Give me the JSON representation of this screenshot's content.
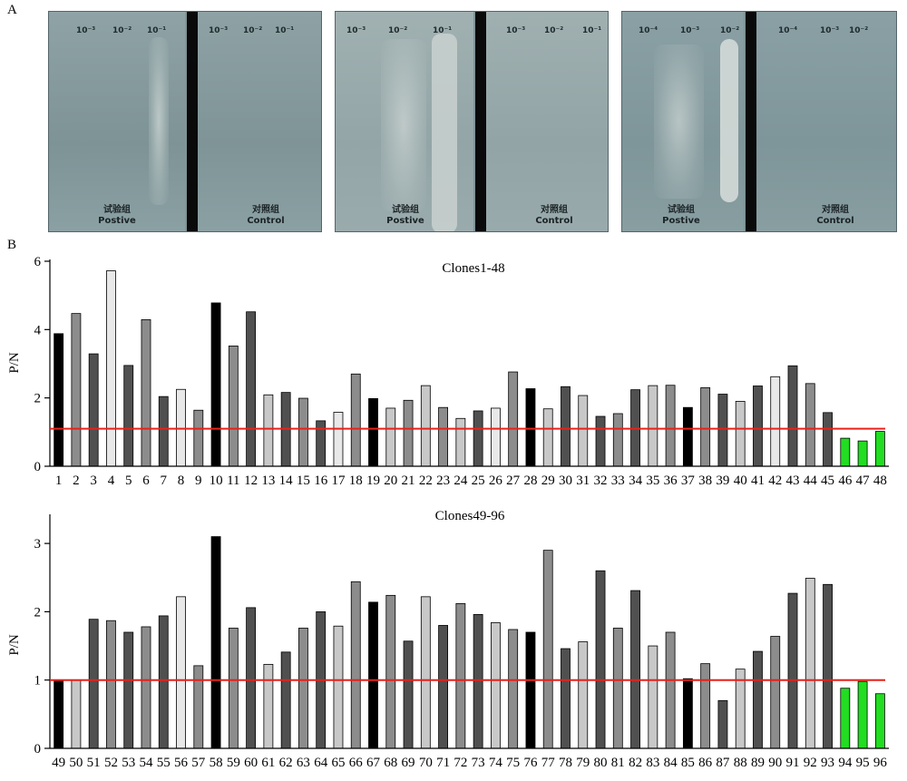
{
  "panel_labels": {
    "a": "A",
    "b": "B"
  },
  "plates": [
    {
      "left": {
        "dilutions": [
          "10⁻³",
          "10⁻²",
          "10⁻¹"
        ],
        "label_cn": "试验组",
        "label_en": "Postive"
      },
      "right": {
        "dilutions": [
          "10⁻³",
          "10⁻²",
          "10⁻¹"
        ],
        "label_cn": "对照组",
        "label_en": "Control"
      }
    },
    {
      "left": {
        "dilutions": [
          "10⁻³",
          "10⁻²",
          "10⁻¹"
        ],
        "label_cn": "试验组",
        "label_en": "Postive"
      },
      "right": {
        "dilutions": [
          "10⁻³",
          "10⁻²",
          "10⁻¹"
        ],
        "label_cn": "对照组",
        "label_en": "Control"
      }
    },
    {
      "left": {
        "dilutions": [
          "10⁻⁴",
          "10⁻³",
          "10⁻²"
        ],
        "label_cn": "试验组",
        "label_en": "Postive"
      },
      "right": {
        "dilutions": [
          "10⁻⁴",
          "10⁻³",
          "10⁻²"
        ],
        "label_cn": "对照组",
        "label_en": "Control"
      }
    }
  ],
  "colors": {
    "black": "#000000",
    "dark": "#505050",
    "mid": "#8c8c8c",
    "light": "#c8c8c8",
    "vlight": "#e8e8e8",
    "green": "#22dd22",
    "threshold": "#e8211a"
  },
  "chart_data": [
    {
      "type": "bar",
      "title": "Clones1-48",
      "ylabel": "P/N",
      "ylim": [
        0,
        6
      ],
      "yticks": [
        0,
        2,
        4,
        6
      ],
      "threshold": 1.1,
      "categories": [
        "1",
        "2",
        "3",
        "4",
        "5",
        "6",
        "7",
        "8",
        "9",
        "10",
        "11",
        "12",
        "13",
        "14",
        "15",
        "16",
        "17",
        "18",
        "19",
        "20",
        "21",
        "22",
        "23",
        "24",
        "25",
        "26",
        "27",
        "28",
        "29",
        "30",
        "31",
        "32",
        "33",
        "34",
        "35",
        "36",
        "37",
        "38",
        "39",
        "40",
        "41",
        "42",
        "43",
        "44",
        "45",
        "46",
        "47",
        "48"
      ],
      "values": [
        3.88,
        4.47,
        3.29,
        5.72,
        2.95,
        4.29,
        2.04,
        2.25,
        1.64,
        4.78,
        3.52,
        4.52,
        2.09,
        2.16,
        1.99,
        1.33,
        1.58,
        2.7,
        1.98,
        1.7,
        1.93,
        2.36,
        1.72,
        1.4,
        1.62,
        1.7,
        2.76,
        2.27,
        1.68,
        2.33,
        2.07,
        1.46,
        1.54,
        2.24,
        2.36,
        2.37,
        1.72,
        2.3,
        2.11,
        1.9,
        2.35,
        2.62,
        2.94,
        2.42,
        1.57,
        0.82,
        0.74,
        1.02
      ],
      "bar_colors": [
        "black",
        "mid",
        "dark",
        "vlight",
        "dark",
        "mid",
        "dark",
        "vlight",
        "mid",
        "black",
        "mid",
        "dark",
        "light",
        "dark",
        "mid",
        "dark",
        "vlight",
        "mid",
        "black",
        "light",
        "mid",
        "light",
        "mid",
        "light",
        "dark",
        "vlight",
        "mid",
        "black",
        "light",
        "dark",
        "light",
        "dark",
        "mid",
        "dark",
        "light",
        "mid",
        "black",
        "mid",
        "dark",
        "light",
        "dark",
        "vlight",
        "dark",
        "mid",
        "dark",
        "green",
        "green",
        "green"
      ]
    },
    {
      "type": "bar",
      "title": "Clones49-96",
      "ylabel": "P/N",
      "ylim": [
        0,
        3.4
      ],
      "yticks": [
        0,
        1,
        2,
        3
      ],
      "threshold": 1.0,
      "categories": [
        "49",
        "50",
        "51",
        "52",
        "53",
        "54",
        "55",
        "56",
        "57",
        "58",
        "59",
        "60",
        "61",
        "62",
        "63",
        "64",
        "65",
        "66",
        "67",
        "68",
        "69",
        "70",
        "71",
        "72",
        "73",
        "74",
        "75",
        "76",
        "77",
        "78",
        "79",
        "80",
        "81",
        "82",
        "83",
        "84",
        "85",
        "86",
        "87",
        "88",
        "89",
        "90",
        "91",
        "92",
        "93",
        "94",
        "95",
        "96"
      ],
      "values": [
        1.0,
        1.0,
        1.89,
        1.87,
        1.7,
        1.78,
        1.94,
        2.22,
        1.21,
        3.1,
        1.76,
        2.06,
        1.23,
        1.41,
        1.76,
        2.0,
        1.79,
        2.44,
        2.14,
        2.24,
        1.57,
        2.22,
        1.8,
        2.12,
        1.96,
        1.84,
        1.74,
        1.7,
        2.9,
        1.46,
        1.56,
        2.6,
        1.76,
        2.31,
        1.5,
        1.7,
        1.02,
        1.24,
        0.7,
        1.16,
        1.42,
        1.64,
        2.27,
        2.49,
        2.4,
        0.88,
        0.98,
        0.8
      ],
      "bar_colors": [
        "black",
        "light",
        "dark",
        "mid",
        "dark",
        "mid",
        "dark",
        "vlight",
        "mid",
        "black",
        "mid",
        "dark",
        "light",
        "dark",
        "mid",
        "dark",
        "light",
        "mid",
        "black",
        "mid",
        "dark",
        "light",
        "dark",
        "mid",
        "dark",
        "light",
        "mid",
        "black",
        "mid",
        "dark",
        "light",
        "dark",
        "mid",
        "dark",
        "light",
        "mid",
        "black",
        "mid",
        "dark",
        "light",
        "dark",
        "mid",
        "dark",
        "light",
        "dark",
        "green",
        "green",
        "green"
      ]
    }
  ]
}
